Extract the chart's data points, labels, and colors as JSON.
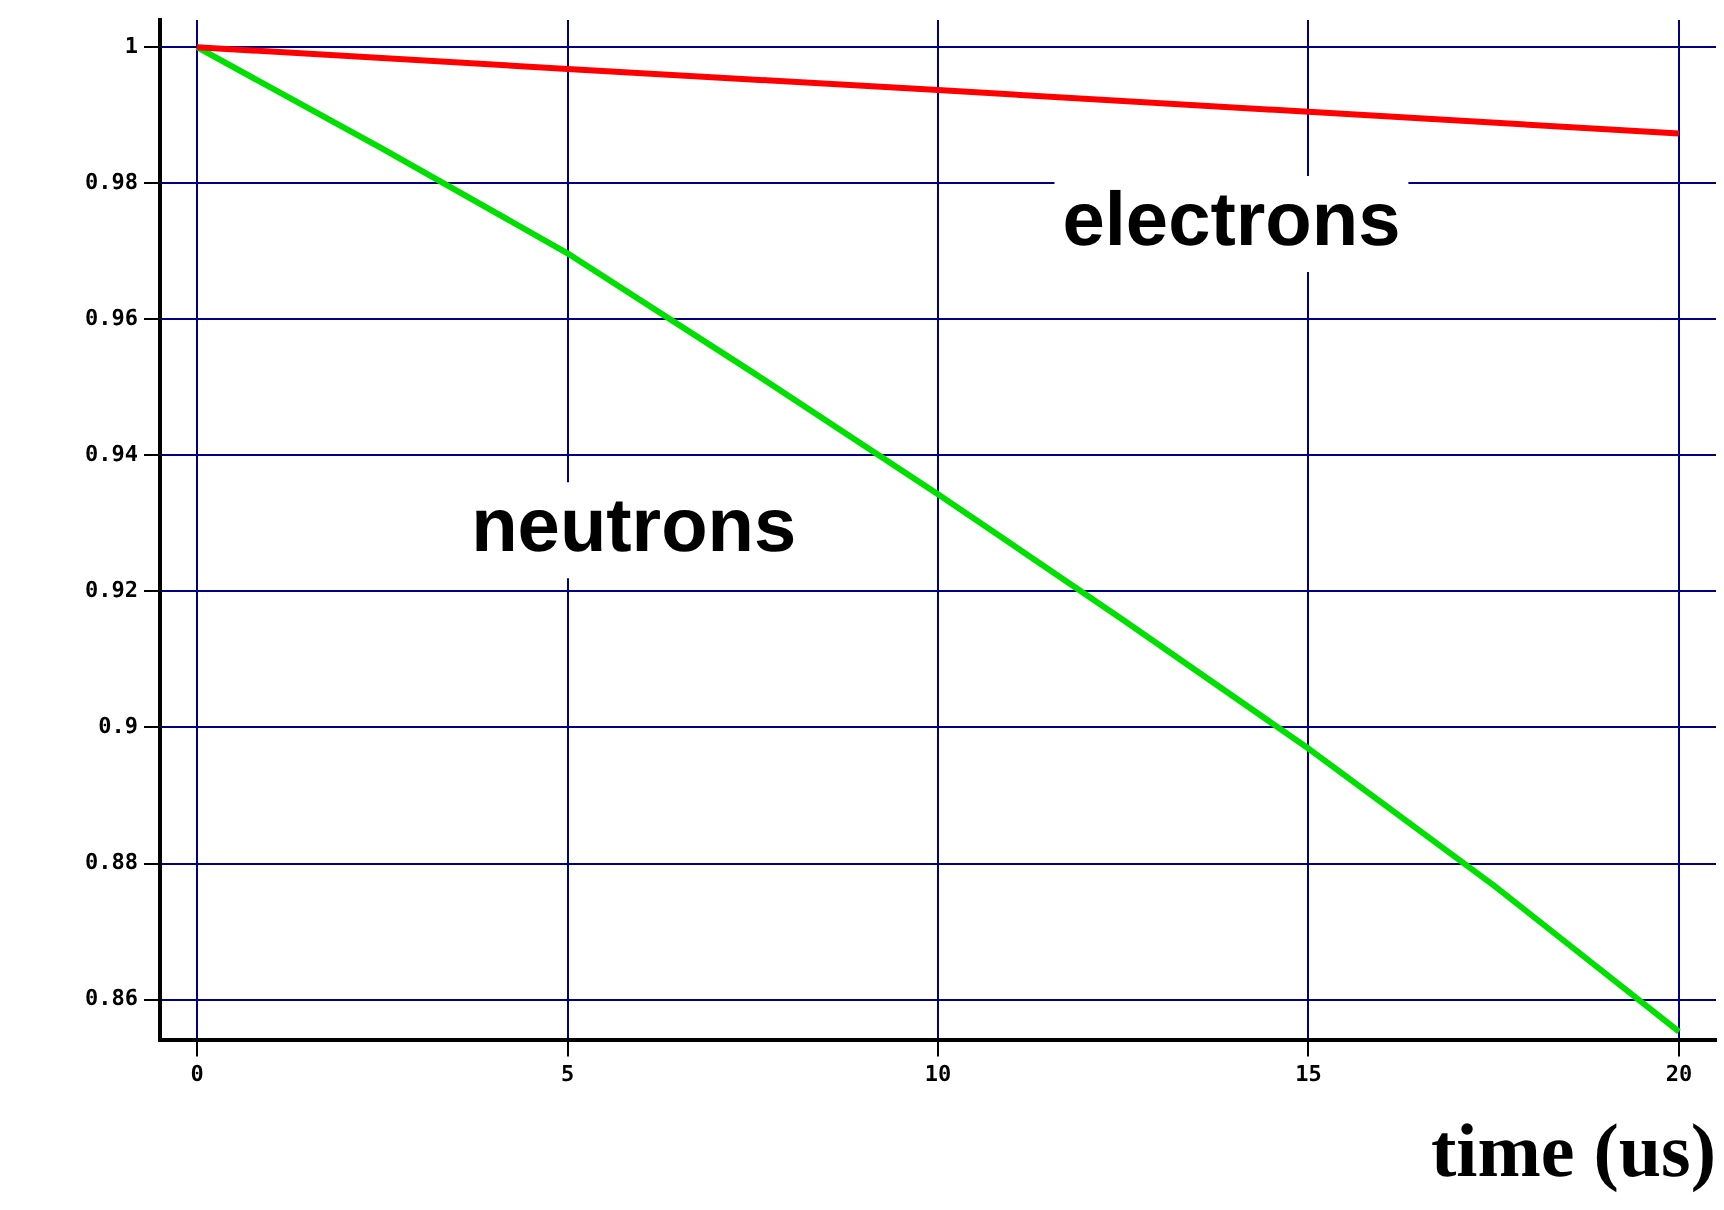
{
  "chart_data": {
    "type": "line",
    "xlabel": "time (us)",
    "x": [
      0,
      2.5,
      5,
      7.5,
      10,
      12.5,
      15,
      17.5,
      20
    ],
    "series": [
      {
        "name": "electrons",
        "color": "#ff0000",
        "x": [
          0,
          5,
          10,
          15,
          20
        ],
        "values": [
          1,
          0.9968,
          0.9937,
          0.9905,
          0.9873
        ]
      },
      {
        "name": "neutrons",
        "color": "#00e000",
        "values": [
          1,
          0.9851,
          0.9697,
          0.9522,
          0.9343,
          0.9158,
          0.8969,
          0.8768,
          0.8553
        ]
      }
    ],
    "xlim": [
      -0.5,
      20.5
    ],
    "ylim": [
      0.854,
      1.004
    ],
    "xticks": [
      0,
      5,
      10,
      15,
      20
    ],
    "yticks": [
      0.86,
      0.88,
      0.9,
      0.92,
      0.94,
      0.96,
      0.98,
      1
    ],
    "grid": true,
    "legend": false,
    "marker": "none",
    "line_style": "solid"
  }
}
